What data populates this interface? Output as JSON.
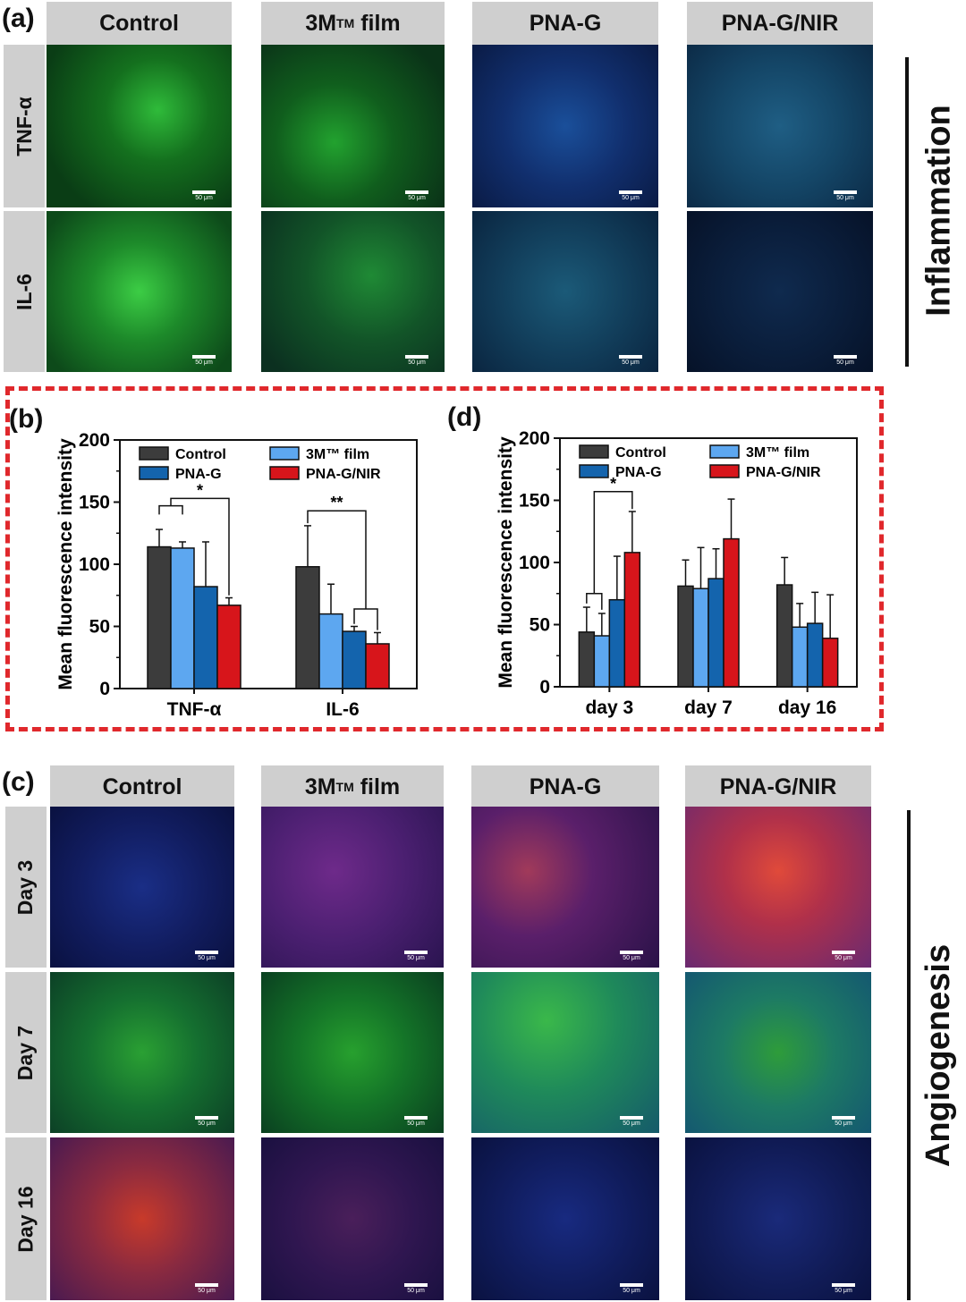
{
  "panels": {
    "a": "(a)",
    "b": "(b)",
    "c": "(c)",
    "d": "(d)"
  },
  "columns": [
    "Control",
    "3M™ film",
    "PNA-G",
    "PNA-G/NIR"
  ],
  "column_head": {
    "base": "3M",
    "sup": "TM",
    "rest": " film"
  },
  "inflammation": {
    "title": "Inflammation",
    "rows": [
      "TNF-α",
      "IL-6"
    ],
    "scale_label": "50 μm"
  },
  "angiogenesis": {
    "title": "Angiogenesis",
    "rows": [
      "Day 3",
      "Day 7",
      "Day 16"
    ],
    "scale_label": "50 μm"
  },
  "colors": {
    "Control": "#3c3c3c",
    "3M film": "#5da7f0",
    "PNA-G": "#1464ad",
    "PNA-G/NIR": "#d7151b",
    "dashed_border": "#e0282c",
    "header_gray": "#cfcfcf"
  },
  "chart_data": [
    {
      "id": "b",
      "type": "bar",
      "ylabel": "Mean fluorescence intensity",
      "xlabel": "",
      "ylim": [
        0,
        200
      ],
      "yticks": [
        "0",
        "50",
        "100",
        "150",
        "200"
      ],
      "categories": [
        "TNF-α",
        "IL-6"
      ],
      "legend": [
        "Control",
        "3M™ film",
        "PNA-G",
        "PNA-G/NIR"
      ],
      "series": [
        {
          "name": "Control",
          "values": [
            114,
            98
          ],
          "errors": [
            14,
            33
          ]
        },
        {
          "name": "3M™ film",
          "values": [
            113,
            60
          ],
          "errors": [
            5,
            24
          ]
        },
        {
          "name": "PNA-G",
          "values": [
            82,
            46
          ],
          "errors": [
            36,
            4
          ]
        },
        {
          "name": "PNA-G/NIR",
          "values": [
            67,
            36
          ],
          "errors": [
            6,
            9
          ]
        }
      ],
      "significance": [
        "*",
        "**"
      ]
    },
    {
      "id": "d",
      "type": "bar",
      "ylabel": "Mean fluorescence intensity",
      "xlabel": "",
      "ylim": [
        0,
        200
      ],
      "yticks": [
        "0",
        "50",
        "100",
        "150",
        "200"
      ],
      "categories": [
        "day 3",
        "day 7",
        "day 16"
      ],
      "legend": [
        "Control",
        "3M™ film",
        "PNA-G",
        "PNA-G/NIR"
      ],
      "series": [
        {
          "name": "Control",
          "values": [
            44,
            81,
            82
          ],
          "errors": [
            20,
            21,
            22
          ]
        },
        {
          "name": "3M™ film",
          "values": [
            41,
            79,
            48
          ],
          "errors": [
            18,
            33,
            19
          ]
        },
        {
          "name": "PNA-G",
          "values": [
            70,
            87,
            51
          ],
          "errors": [
            35,
            24,
            25
          ]
        },
        {
          "name": "PNA-G/NIR",
          "values": [
            108,
            119,
            39
          ],
          "errors": [
            33,
            32,
            35
          ]
        }
      ],
      "significance": [
        "*"
      ]
    }
  ]
}
